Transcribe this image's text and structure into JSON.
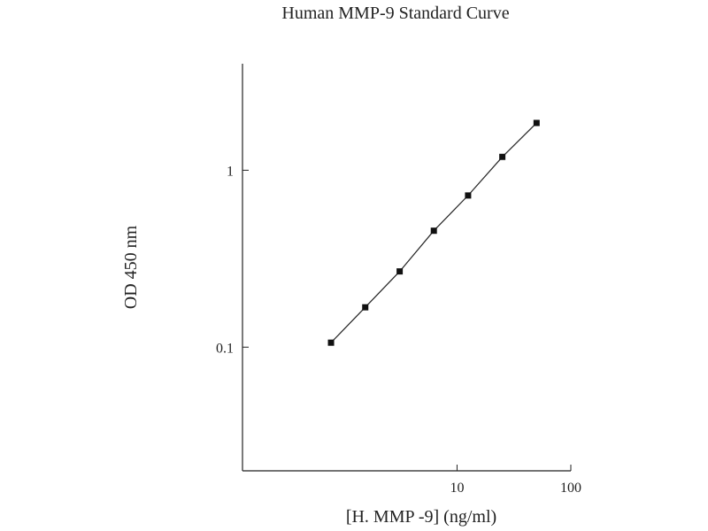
{
  "chart_data": {
    "type": "line",
    "title": "Human MMP-9 Standard Curve",
    "xlabel": "[H. MMP -9] (ng/ml)",
    "ylabel": "OD 450 nm",
    "x_scale": "log",
    "y_scale": "log",
    "xlim": [
      0.13,
      100
    ],
    "ylim": [
      0.02,
      4
    ],
    "x_ticks": [
      10,
      100
    ],
    "x_tick_labels": [
      "10",
      "100"
    ],
    "y_ticks": [
      0.1,
      1
    ],
    "y_tick_labels": [
      "0.1",
      "1"
    ],
    "grid": false,
    "legend": "none",
    "series": [
      {
        "x": [
          0.78,
          1.56,
          3.13,
          6.25,
          12.5,
          25,
          50
        ],
        "y": [
          0.106,
          0.168,
          0.268,
          0.455,
          0.72,
          1.19,
          1.85
        ]
      }
    ]
  }
}
